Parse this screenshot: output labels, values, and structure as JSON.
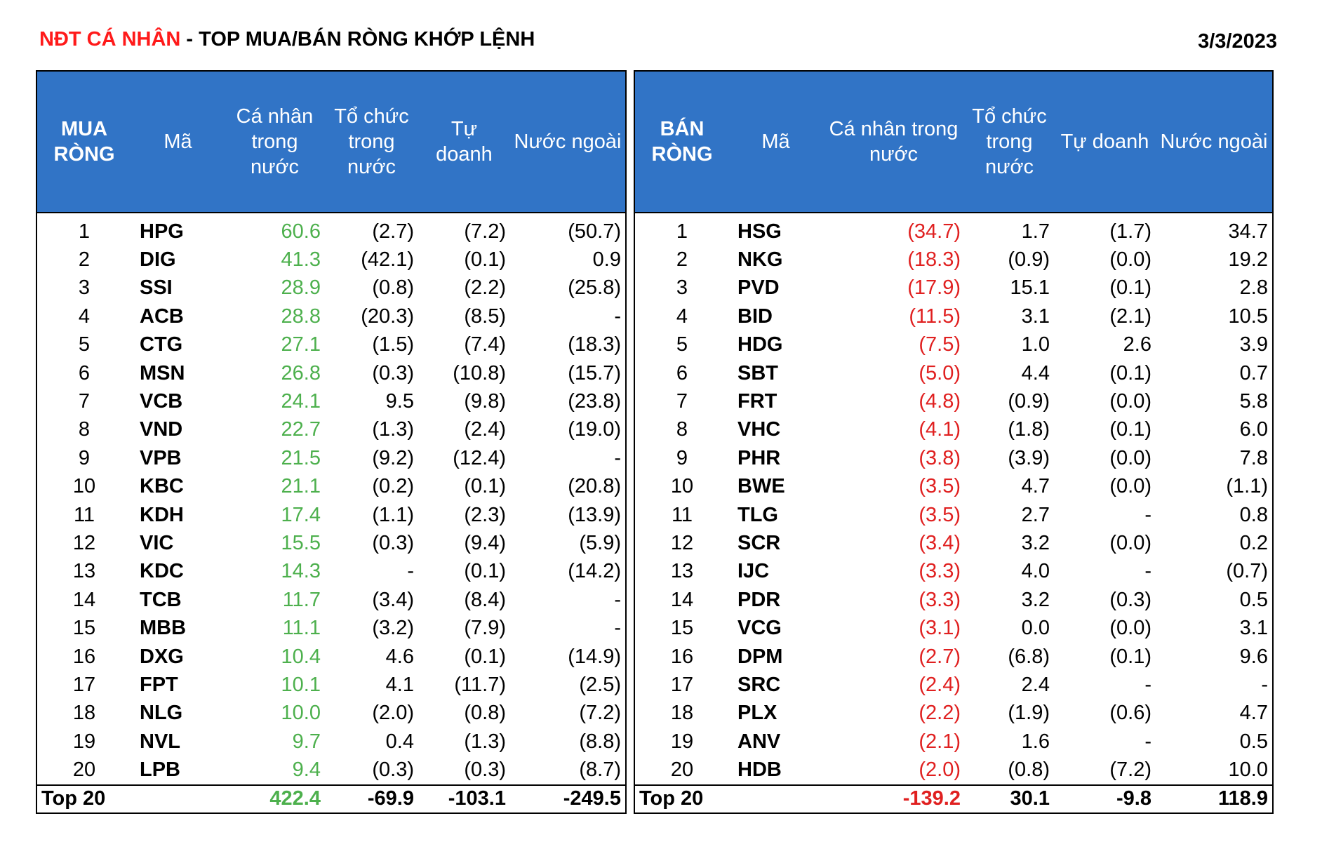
{
  "header": {
    "title_red": "NĐT CÁ NHÂN",
    "title_rest": " - TOP MUA/BÁN RÒNG KHỚP LỆNH",
    "date": "3/3/2023"
  },
  "colors": {
    "header_bg": "#3174c6",
    "buy_value": "#4db04d",
    "sell_value": "#e02020",
    "title_accent": "#ff1a1a"
  },
  "buy_table": {
    "columns": [
      "MUA RÒNG",
      "Mã",
      "Cá nhân trong nước",
      "Tổ chức trong nước",
      "Tự doanh",
      "Nước ngoài"
    ],
    "rows": [
      [
        "1",
        "HPG",
        "60.6",
        "(2.7)",
        "(7.2)",
        "(50.7)"
      ],
      [
        "2",
        "DIG",
        "41.3",
        "(42.1)",
        "(0.1)",
        "0.9"
      ],
      [
        "3",
        "SSI",
        "28.9",
        "(0.8)",
        "(2.2)",
        "(25.8)"
      ],
      [
        "4",
        "ACB",
        "28.8",
        "(20.3)",
        "(8.5)",
        "-"
      ],
      [
        "5",
        "CTG",
        "27.1",
        "(1.5)",
        "(7.4)",
        "(18.3)"
      ],
      [
        "6",
        "MSN",
        "26.8",
        "(0.3)",
        "(10.8)",
        "(15.7)"
      ],
      [
        "7",
        "VCB",
        "24.1",
        "9.5",
        "(9.8)",
        "(23.8)"
      ],
      [
        "8",
        "VND",
        "22.7",
        "(1.3)",
        "(2.4)",
        "(19.0)"
      ],
      [
        "9",
        "VPB",
        "21.5",
        "(9.2)",
        "(12.4)",
        "-"
      ],
      [
        "10",
        "KBC",
        "21.1",
        "(0.2)",
        "(0.1)",
        "(20.8)"
      ],
      [
        "11",
        "KDH",
        "17.4",
        "(1.1)",
        "(2.3)",
        "(13.9)"
      ],
      [
        "12",
        "VIC",
        "15.5",
        "(0.3)",
        "(9.4)",
        "(5.9)"
      ],
      [
        "13",
        "KDC",
        "14.3",
        "-",
        "(0.1)",
        "(14.2)"
      ],
      [
        "14",
        "TCB",
        "11.7",
        "(3.4)",
        "(8.4)",
        "-"
      ],
      [
        "15",
        "MBB",
        "11.1",
        "(3.2)",
        "(7.9)",
        "-"
      ],
      [
        "16",
        "DXG",
        "10.4",
        "4.6",
        "(0.1)",
        "(14.9)"
      ],
      [
        "17",
        "FPT",
        "10.1",
        "4.1",
        "(11.7)",
        "(2.5)"
      ],
      [
        "18",
        "NLG",
        "10.0",
        "(2.0)",
        "(0.8)",
        "(7.2)"
      ],
      [
        "19",
        "NVL",
        "9.7",
        "0.4",
        "(1.3)",
        "(8.8)"
      ],
      [
        "20",
        "LPB",
        "9.4",
        "(0.3)",
        "(0.3)",
        "(8.7)"
      ]
    ],
    "total": [
      "Top 20",
      "422.4",
      "-69.9",
      "-103.1",
      "-249.5"
    ]
  },
  "sell_table": {
    "columns": [
      "BÁN RÒNG",
      "Mã",
      "Cá nhân trong nước",
      "Tổ chức trong nước",
      "Tự doanh",
      "Nước ngoài"
    ],
    "rows": [
      [
        "1",
        "HSG",
        "(34.7)",
        "1.7",
        "(1.7)",
        "34.7"
      ],
      [
        "2",
        "NKG",
        "(18.3)",
        "(0.9)",
        "(0.0)",
        "19.2"
      ],
      [
        "3",
        "PVD",
        "(17.9)",
        "15.1",
        "(0.1)",
        "2.8"
      ],
      [
        "4",
        "BID",
        "(11.5)",
        "3.1",
        "(2.1)",
        "10.5"
      ],
      [
        "5",
        "HDG",
        "(7.5)",
        "1.0",
        "2.6",
        "3.9"
      ],
      [
        "6",
        "SBT",
        "(5.0)",
        "4.4",
        "(0.1)",
        "0.7"
      ],
      [
        "7",
        "FRT",
        "(4.8)",
        "(0.9)",
        "(0.0)",
        "5.8"
      ],
      [
        "8",
        "VHC",
        "(4.1)",
        "(1.8)",
        "(0.1)",
        "6.0"
      ],
      [
        "9",
        "PHR",
        "(3.8)",
        "(3.9)",
        "(0.0)",
        "7.8"
      ],
      [
        "10",
        "BWE",
        "(3.5)",
        "4.7",
        "(0.0)",
        "(1.1)"
      ],
      [
        "11",
        "TLG",
        "(3.5)",
        "2.7",
        "-",
        "0.8"
      ],
      [
        "12",
        "SCR",
        "(3.4)",
        "3.2",
        "(0.0)",
        "0.2"
      ],
      [
        "13",
        "IJC",
        "(3.3)",
        "4.0",
        "-",
        "(0.7)"
      ],
      [
        "14",
        "PDR",
        "(3.3)",
        "3.2",
        "(0.3)",
        "0.5"
      ],
      [
        "15",
        "VCG",
        "(3.1)",
        "0.0",
        "(0.0)",
        "3.1"
      ],
      [
        "16",
        "DPM",
        "(2.7)",
        "(6.8)",
        "(0.1)",
        "9.6"
      ],
      [
        "17",
        "SRC",
        "(2.4)",
        "2.4",
        "-",
        "-"
      ],
      [
        "18",
        "PLX",
        "(2.2)",
        "(1.9)",
        "(0.6)",
        "4.7"
      ],
      [
        "19",
        "ANV",
        "(2.1)",
        "1.6",
        "-",
        "0.5"
      ],
      [
        "20",
        "HDB",
        "(2.0)",
        "(0.8)",
        "(7.2)",
        "10.0"
      ]
    ],
    "total": [
      "Top 20",
      "-139.2",
      "30.1",
      "-9.8",
      "118.9"
    ]
  }
}
